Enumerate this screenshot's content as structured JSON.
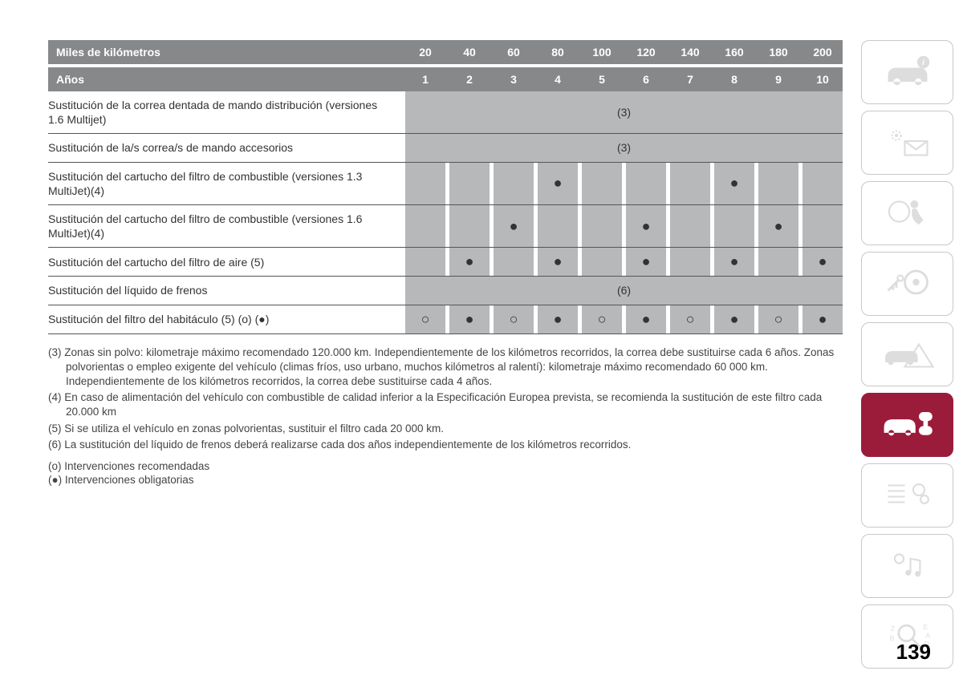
{
  "page_number": "139",
  "colors": {
    "header_bg": "#878889",
    "header_text": "#ffffff",
    "cell_bg": "#b7b8ba",
    "border": "#555555",
    "active_tab": "#9b1c3a",
    "inactive_icon": "#dddddd"
  },
  "table": {
    "header_km_label": "Miles de kilómetros",
    "header_km_values": [
      "20",
      "40",
      "60",
      "80",
      "100",
      "120",
      "140",
      "160",
      "180",
      "200"
    ],
    "header_years_label": "Años",
    "header_years_values": [
      "1",
      "2",
      "3",
      "4",
      "5",
      "6",
      "7",
      "8",
      "9",
      "10"
    ],
    "rows": [
      {
        "label": "Sustitución de la correa dentada de mando distribución (versiones 1.6 Multijet)",
        "type": "span",
        "span_text": "(3)",
        "tall": true
      },
      {
        "label": "Sustitución de la/s correa/s de mando accesorios",
        "type": "span",
        "span_text": "(3)",
        "tall": false
      },
      {
        "label": "Sustitución del cartucho del filtro de combustible (versiones 1.3 MultiJet)(4)",
        "type": "marks",
        "marks": [
          "",
          "",
          "",
          "●",
          "",
          "",
          "",
          "●",
          "",
          ""
        ],
        "tall": true
      },
      {
        "label": "Sustitución del cartucho del filtro de combustible (versiones 1.6 MultiJet)(4)",
        "type": "marks",
        "marks": [
          "",
          "",
          "●",
          "",
          "",
          "●",
          "",
          "",
          "●",
          ""
        ],
        "tall": true
      },
      {
        "label": "Sustitución del cartucho del filtro de aire (5)",
        "type": "marks",
        "marks": [
          "",
          "●",
          "",
          "●",
          "",
          "●",
          "",
          "●",
          "",
          "●"
        ],
        "tall": false
      },
      {
        "label": "Sustitución del líquido de frenos",
        "type": "span",
        "span_text": "(6)",
        "tall": false
      },
      {
        "label": "Sustitución del filtro del habitáculo (5) (o) (●)",
        "type": "marks",
        "marks": [
          "○",
          "●",
          "○",
          "●",
          "○",
          "●",
          "○",
          "●",
          "○",
          "●"
        ],
        "tall": false
      }
    ]
  },
  "footnotes": [
    "(3) Zonas sin polvo: kilometraje máximo recomendado 120.000 km. Independientemente de los kilómetros recorridos, la correa debe sustituirse cada 6 años. Zonas polvorientas o empleo exigente del vehículo (climas fríos, uso urbano, muchos kilómetros al ralentí): kilometraje máximo recomendado 60 000 km. Independientemente de los kilómetros recorridos, la correa debe sustituirse cada 4 años.",
    "(4) En caso de alimentación del vehículo con combustible de calidad inferior a la Especificación Europea prevista, se recomienda la sustitución de este filtro cada 20.000 km",
    "(5) Si se utiliza el vehículo en zonas polvorientas, sustituir el filtro cada 20 000 km.",
    "(6) La sustitución del líquido de frenos deberá realizarse cada dos años independientemente de los kilómetros recorridos."
  ],
  "legend": [
    "(o) Intervenciones recomendadas",
    "(●) Intervenciones obligatorias"
  ],
  "sidebar_tabs": [
    {
      "name": "car-info-icon",
      "active": false
    },
    {
      "name": "sun-mail-icon",
      "active": false
    },
    {
      "name": "airbag-icon",
      "active": false
    },
    {
      "name": "key-wheel-icon",
      "active": false
    },
    {
      "name": "car-warning-icon",
      "active": false
    },
    {
      "name": "car-wrench-icon",
      "active": true
    },
    {
      "name": "list-gear-icon",
      "active": false
    },
    {
      "name": "media-icon",
      "active": false
    },
    {
      "name": "search-letters-icon",
      "active": false
    }
  ]
}
